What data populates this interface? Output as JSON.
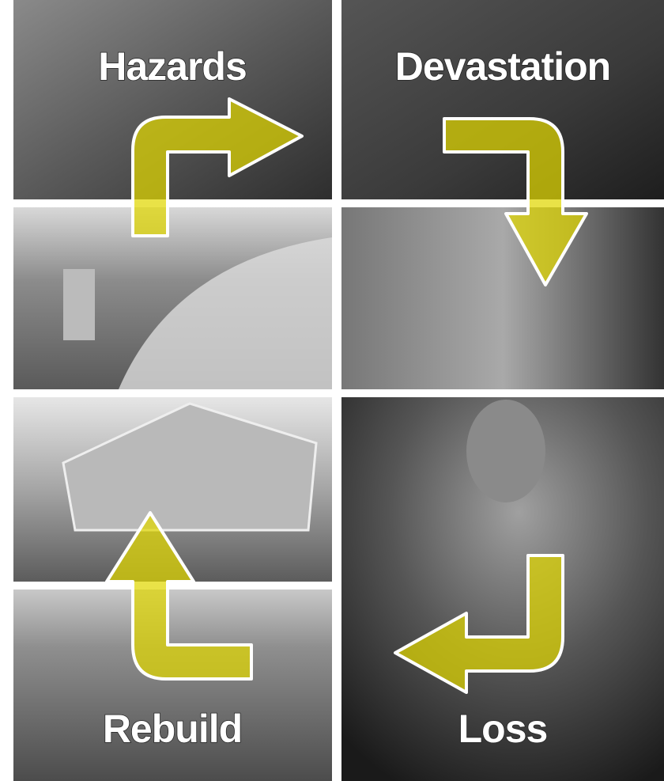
{
  "labels": {
    "hazards": "Hazards",
    "devastation": "Devastation",
    "rebuild": "Rebuild",
    "loss": "Loss"
  }
}
